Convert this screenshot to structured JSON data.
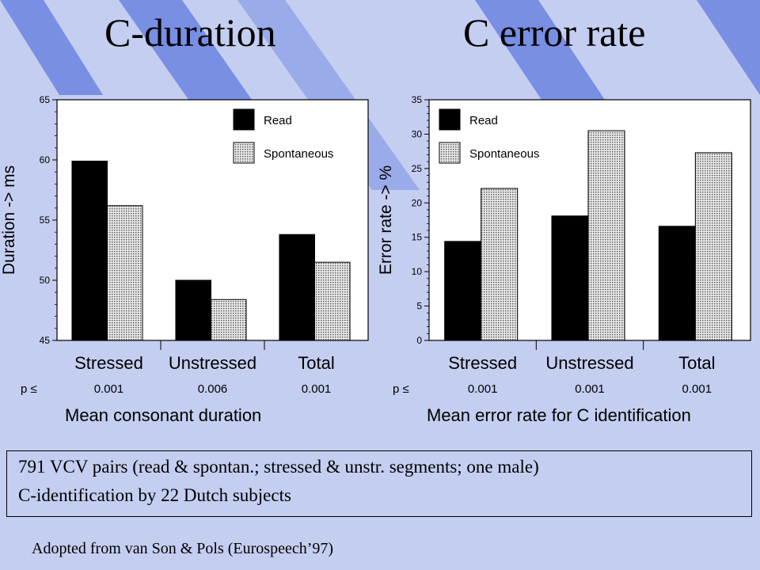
{
  "titles": {
    "left": "C-duration",
    "right": "C error rate"
  },
  "captions": {
    "left": "Mean consonant duration",
    "right": "Mean error rate for C identification"
  },
  "info": {
    "line1": "791 VCV pairs (read & spontan.; stressed & unstr. segments; one male)",
    "line2": "C-identification by 22 Dutch subjects"
  },
  "attribution": "Adopted from van Son & Pols (Eurospeech’97)",
  "colors": {
    "read": "#000000",
    "spontaneous_fill": "#e0e0e0",
    "background": "#c4cef0",
    "stripe": "#6b84e0"
  },
  "chart_data": [
    {
      "type": "bar",
      "ylabel": "Duration -> ms",
      "ylim": [
        45,
        65
      ],
      "yticks": [
        "45",
        "50",
        "55",
        "60",
        "65"
      ],
      "categories": [
        "Stressed",
        "Unstressed",
        "Total"
      ],
      "series": [
        {
          "name": "Read",
          "values": [
            59.9,
            50.0,
            53.8
          ]
        },
        {
          "name": "Spontaneous",
          "values": [
            56.2,
            48.4,
            51.5
          ]
        }
      ],
      "p_label": "p ≤",
      "p_values": [
        "0.001",
        "0.006",
        "0.001"
      ],
      "legend": "top-right"
    },
    {
      "type": "bar",
      "ylabel": "Error rate -> %",
      "ylim": [
        0,
        35
      ],
      "yticks": [
        "0",
        "5",
        "10",
        "15",
        "20",
        "25",
        "30",
        "35"
      ],
      "categories": [
        "Stressed",
        "Unstressed",
        "Total"
      ],
      "series": [
        {
          "name": "Read",
          "values": [
            14.4,
            18.1,
            16.6
          ]
        },
        {
          "name": "Spontaneous",
          "values": [
            22.1,
            30.5,
            27.3
          ]
        }
      ],
      "p_label": "p ≤",
      "p_values": [
        "0.001",
        "0.001",
        "0.001"
      ],
      "legend": "top-left"
    }
  ]
}
